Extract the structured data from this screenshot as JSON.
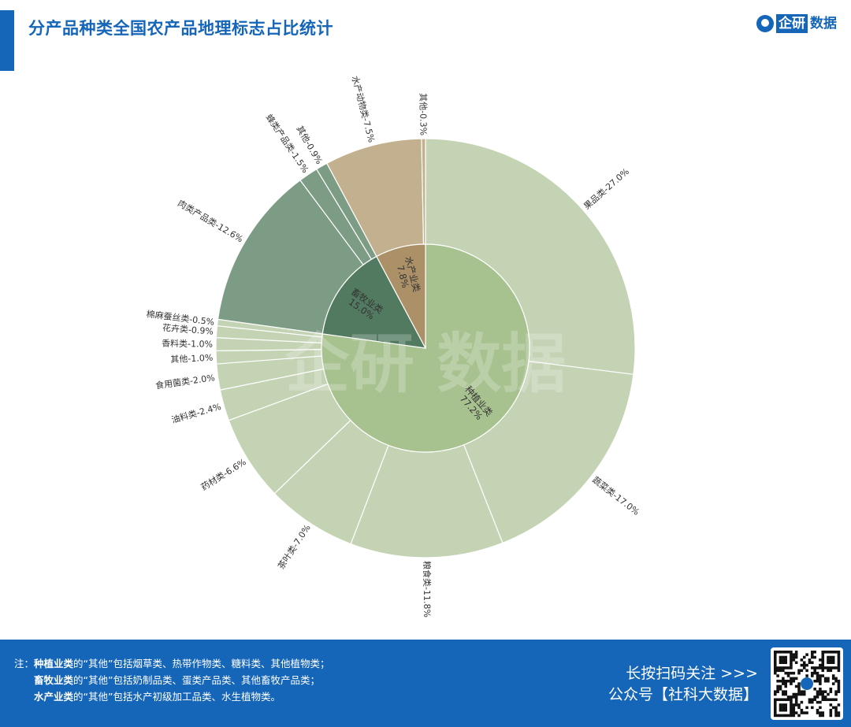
{
  "header": {
    "title": "分产品种类全国农产品地理标志占比统计",
    "brand_box": "企研",
    "brand_text": "数据"
  },
  "watermark": "企研 数据",
  "chart_data": {
    "type": "sunburst",
    "inner": [
      {
        "name": "种植业类",
        "value": 77.2,
        "color": "#a7c18f"
      },
      {
        "name": "畜牧业类",
        "value": 15.0,
        "color": "#527a60"
      },
      {
        "name": "水产业类",
        "value": 7.8,
        "color": "#ab9068"
      }
    ],
    "outer": [
      {
        "name": "果品类",
        "value": 27.0,
        "parent": "种植业类",
        "color": "#c3d3b3"
      },
      {
        "name": "蔬菜类",
        "value": 17.0,
        "parent": "种植业类",
        "color": "#c3d3b3"
      },
      {
        "name": "粮食类",
        "value": 11.8,
        "parent": "种植业类",
        "color": "#c3d3b3"
      },
      {
        "name": "茶叶类",
        "value": 7.0,
        "parent": "种植业类",
        "color": "#c3d3b3"
      },
      {
        "name": "药材类",
        "value": 6.6,
        "parent": "种植业类",
        "color": "#c3d3b3"
      },
      {
        "name": "油料类",
        "value": 2.4,
        "parent": "种植业类",
        "color": "#c3d3b3"
      },
      {
        "name": "食用菌类",
        "value": 2.0,
        "parent": "种植业类",
        "color": "#c3d3b3"
      },
      {
        "name": "其他",
        "value": 1.0,
        "parent": "种植业类",
        "color": "#c3d3b3"
      },
      {
        "name": "香料类",
        "value": 1.0,
        "parent": "种植业类",
        "color": "#c3d3b3"
      },
      {
        "name": "花卉类",
        "value": 0.9,
        "parent": "种植业类",
        "color": "#c3d3b3"
      },
      {
        "name": "棉麻蚕丝类",
        "value": 0.5,
        "parent": "种植业类",
        "color": "#c3d3b3"
      },
      {
        "name": "肉类产品类",
        "value": 12.6,
        "parent": "畜牧业类",
        "color": "#7d9c86"
      },
      {
        "name": "蜂类产品类",
        "value": 1.5,
        "parent": "畜牧业类",
        "color": "#7d9c86"
      },
      {
        "name": "其他",
        "value": 0.9,
        "parent": "畜牧业类",
        "color": "#7d9c86"
      },
      {
        "name": "水产动物类",
        "value": 7.5,
        "parent": "水产业类",
        "color": "#c2b08e"
      },
      {
        "name": "其他",
        "value": 0.3,
        "parent": "水产业类",
        "color": "#c2b08e"
      }
    ]
  },
  "footer": {
    "note_prefix": "注：",
    "notes": [
      {
        "bold": "种植业类",
        "text": "的“其他”包括烟草类、热带作物类、糖料类、其他植物类；"
      },
      {
        "bold": "畜牧业类",
        "text": "的“其他”包括奶制品类、蛋类产品类、其他畜牧产品类；"
      },
      {
        "bold": "水产业类",
        "text": "的“其他”包括水产初级加工品类、水生植物类。"
      }
    ],
    "follow_line1": "长按扫码关注 >>>",
    "follow_line2": "公众号【社科大数据】"
  }
}
